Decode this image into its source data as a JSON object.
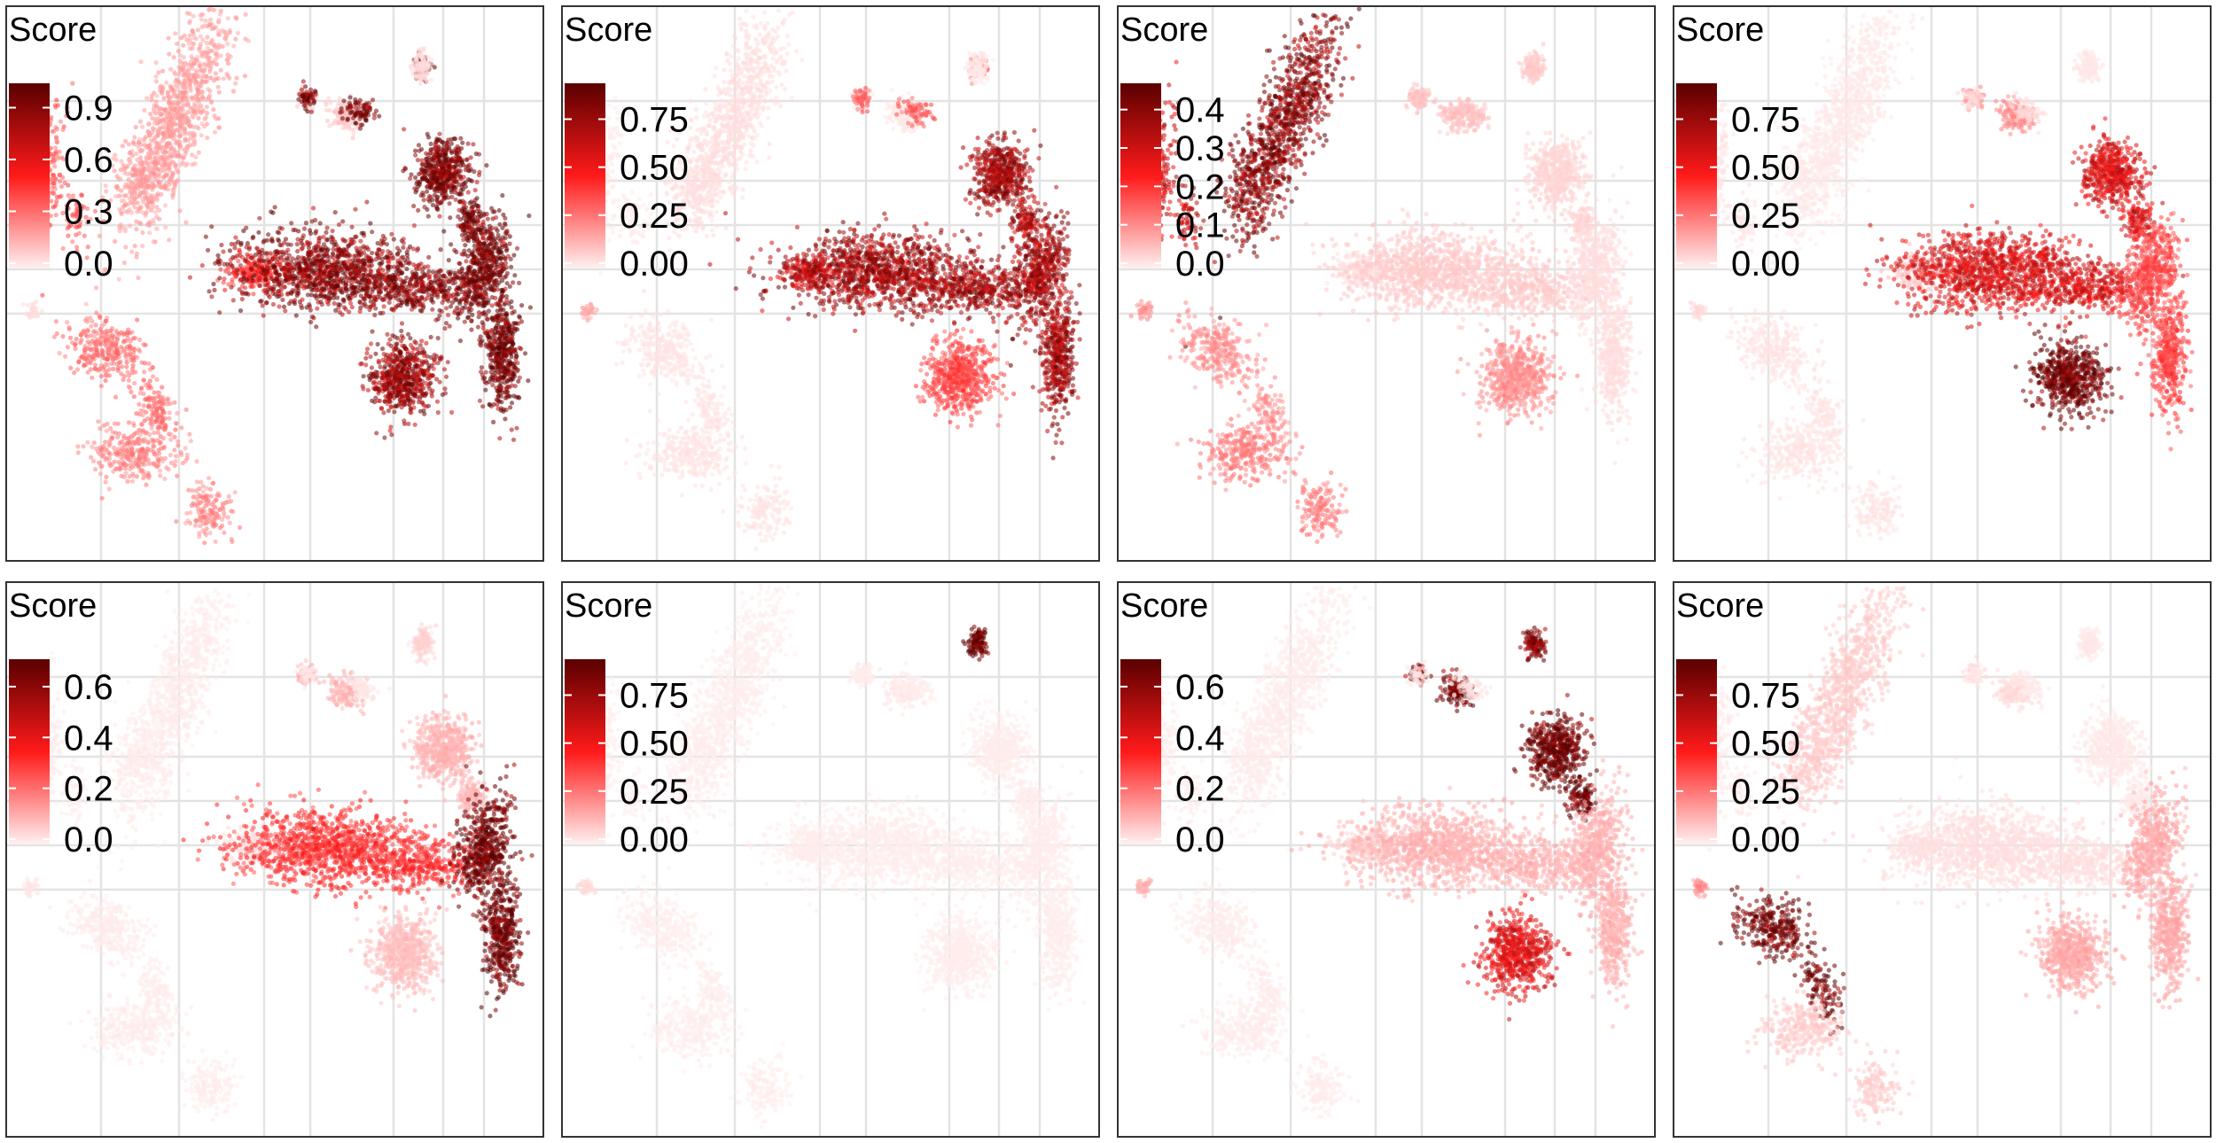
{
  "colors": {
    "high": "#5a0000",
    "mid": "#ff1a1a",
    "low": "#fff1f1",
    "grid": "#e3e3e3",
    "frame": "#333333"
  },
  "chart_data": [
    {
      "type": "scatter",
      "legend_title": "Score",
      "legend_position": "top-left",
      "colorbar_ticks": [
        "0.0",
        "0.3",
        "0.6",
        "0.9"
      ],
      "color_range": [
        0,
        1.0
      ],
      "cluster_scores": {
        "A": 0.2,
        "B": 0.35,
        "C": 0.95,
        "D": 0.9,
        "E": 0.92,
        "F": 0.85,
        "G": 0.45,
        "H": 0.8,
        "I": 0.3,
        "J": 0.25,
        "K": 0.05,
        "L": 0.1,
        "M": 0.05
      }
    },
    {
      "type": "scatter",
      "legend_title": "Score",
      "legend_position": "top-left",
      "colorbar_ticks": [
        "0.00",
        "0.25",
        "0.50",
        "0.75"
      ],
      "color_range": [
        0,
        0.9
      ],
      "cluster_scores": {
        "A": 0.04,
        "B": 0.02,
        "C": 0.3,
        "D": 0.7,
        "E": 0.7,
        "F": 0.7,
        "G": 0.6,
        "H": 0.35,
        "I": 0.03,
        "J": 0.03,
        "K": 0.02,
        "L": 0.02,
        "M": 0.15
      }
    },
    {
      "type": "scatter",
      "legend_title": "Score",
      "legend_position": "top-left",
      "colorbar_ticks": [
        "0.0",
        "0.1",
        "0.2",
        "0.3",
        "0.4"
      ],
      "color_range": [
        0,
        0.45
      ],
      "cluster_scores": {
        "A": 0.38,
        "B": 0.3,
        "C": 0.05,
        "D": 0.03,
        "E": 0.02,
        "F": 0.04,
        "G": 0.02,
        "H": 0.1,
        "I": 0.1,
        "J": 0.12,
        "K": 0.04,
        "L": 0.05,
        "M": 0.1
      }
    },
    {
      "type": "scatter",
      "legend_title": "Score",
      "legend_position": "top-left",
      "colorbar_ticks": [
        "0.00",
        "0.25",
        "0.50",
        "0.75"
      ],
      "color_range": [
        0,
        0.9
      ],
      "cluster_scores": {
        "A": 0.02,
        "B": 0.03,
        "C": 0.05,
        "D": 0.55,
        "E": 0.35,
        "F": 0.55,
        "G": 0.1,
        "H": 0.85,
        "I": 0.03,
        "J": 0.03,
        "K": 0.02,
        "L": 0.2,
        "M": 0.05
      }
    },
    {
      "type": "scatter",
      "legend_title": "Score",
      "legend_position": "top-left",
      "colorbar_ticks": [
        "0.0",
        "0.2",
        "0.4",
        "0.6"
      ],
      "color_range": [
        0,
        0.68
      ],
      "cluster_scores": {
        "A": 0.01,
        "B": 0.01,
        "C": 0.02,
        "D": 0.1,
        "E": 0.65,
        "F": 0.3,
        "G": 0.03,
        "H": 0.08,
        "I": 0.01,
        "J": 0.01,
        "K": 0.05,
        "L": 0.1,
        "M": 0.02
      }
    },
    {
      "type": "scatter",
      "legend_title": "Score",
      "legend_position": "top-left",
      "colorbar_ticks": [
        "0.00",
        "0.25",
        "0.50",
        "0.75"
      ],
      "color_range": [
        0,
        0.9
      ],
      "cluster_scores": {
        "A": 0.01,
        "B": 0.01,
        "C": 0.01,
        "D": 0.01,
        "E": 0.01,
        "F": 0.01,
        "G": 0.01,
        "H": 0.01,
        "I": 0.01,
        "J": 0.01,
        "K": 0.9,
        "L": 0.02,
        "M": 0.05
      }
    },
    {
      "type": "scatter",
      "legend_title": "Score",
      "legend_position": "top-left",
      "colorbar_ticks": [
        "0.0",
        "0.2",
        "0.4",
        "0.6"
      ],
      "color_range": [
        0,
        0.68
      ],
      "cluster_scores": {
        "A": 0.01,
        "B": 0.01,
        "C": 0.02,
        "D": 0.65,
        "E": 0.1,
        "F": 0.1,
        "G": 0.05,
        "H": 0.4,
        "I": 0.01,
        "J": 0.01,
        "K": 0.6,
        "L": 0.6,
        "M": 0.1
      }
    },
    {
      "type": "scatter",
      "legend_title": "Score",
      "legend_position": "top-left",
      "colorbar_ticks": [
        "0.00",
        "0.25",
        "0.50",
        "0.75"
      ],
      "color_range": [
        0,
        0.9
      ],
      "cluster_scores": {
        "A": 0.08,
        "B": 0.02,
        "C": 0.02,
        "D": 0.02,
        "E": 0.15,
        "F": 0.04,
        "G": 0.03,
        "H": 0.15,
        "I": 0.85,
        "J": 0.08,
        "K": 0.02,
        "L": 0.05,
        "M": 0.2
      }
    }
  ]
}
